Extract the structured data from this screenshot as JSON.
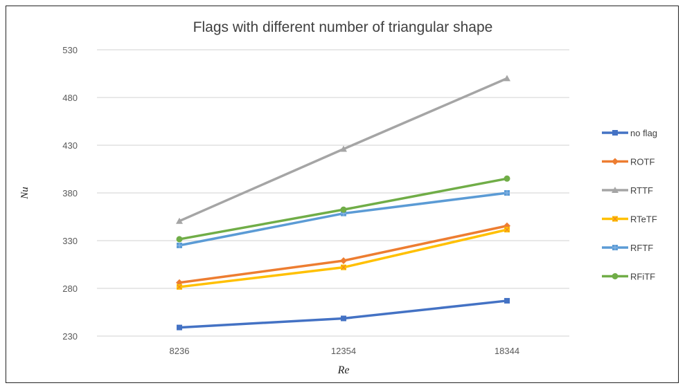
{
  "chart_data": {
    "type": "line",
    "title": "Flags with  different number of triangular shape",
    "xlabel": "Re",
    "ylabel": "Nu",
    "categories": [
      "8236",
      "12354",
      "18344"
    ],
    "ylim": [
      230,
      530
    ],
    "yticks": [
      230,
      280,
      330,
      380,
      430,
      480,
      530
    ],
    "grid": true,
    "legend_position": "right",
    "series": [
      {
        "name": "no flag",
        "color": "#4472C4",
        "marker": "square",
        "values": [
          239,
          248.5,
          267
        ]
      },
      {
        "name": "ROTF",
        "color": "#ED7D31",
        "marker": "diamond",
        "values": [
          286,
          309,
          345.5
        ]
      },
      {
        "name": "RTTF",
        "color": "#A5A5A5",
        "marker": "triangle",
        "values": [
          350.5,
          426,
          500
        ]
      },
      {
        "name": "RTeTF",
        "color": "#FFC000",
        "marker": "x-square",
        "values": [
          281.5,
          302,
          341.5
        ]
      },
      {
        "name": "RFTF",
        "color": "#5B9BD5",
        "marker": "plus-square",
        "values": [
          325,
          358.5,
          380
        ]
      },
      {
        "name": "RFiTF",
        "color": "#70AD47",
        "marker": "circle",
        "values": [
          331.5,
          362.5,
          395
        ]
      }
    ]
  }
}
